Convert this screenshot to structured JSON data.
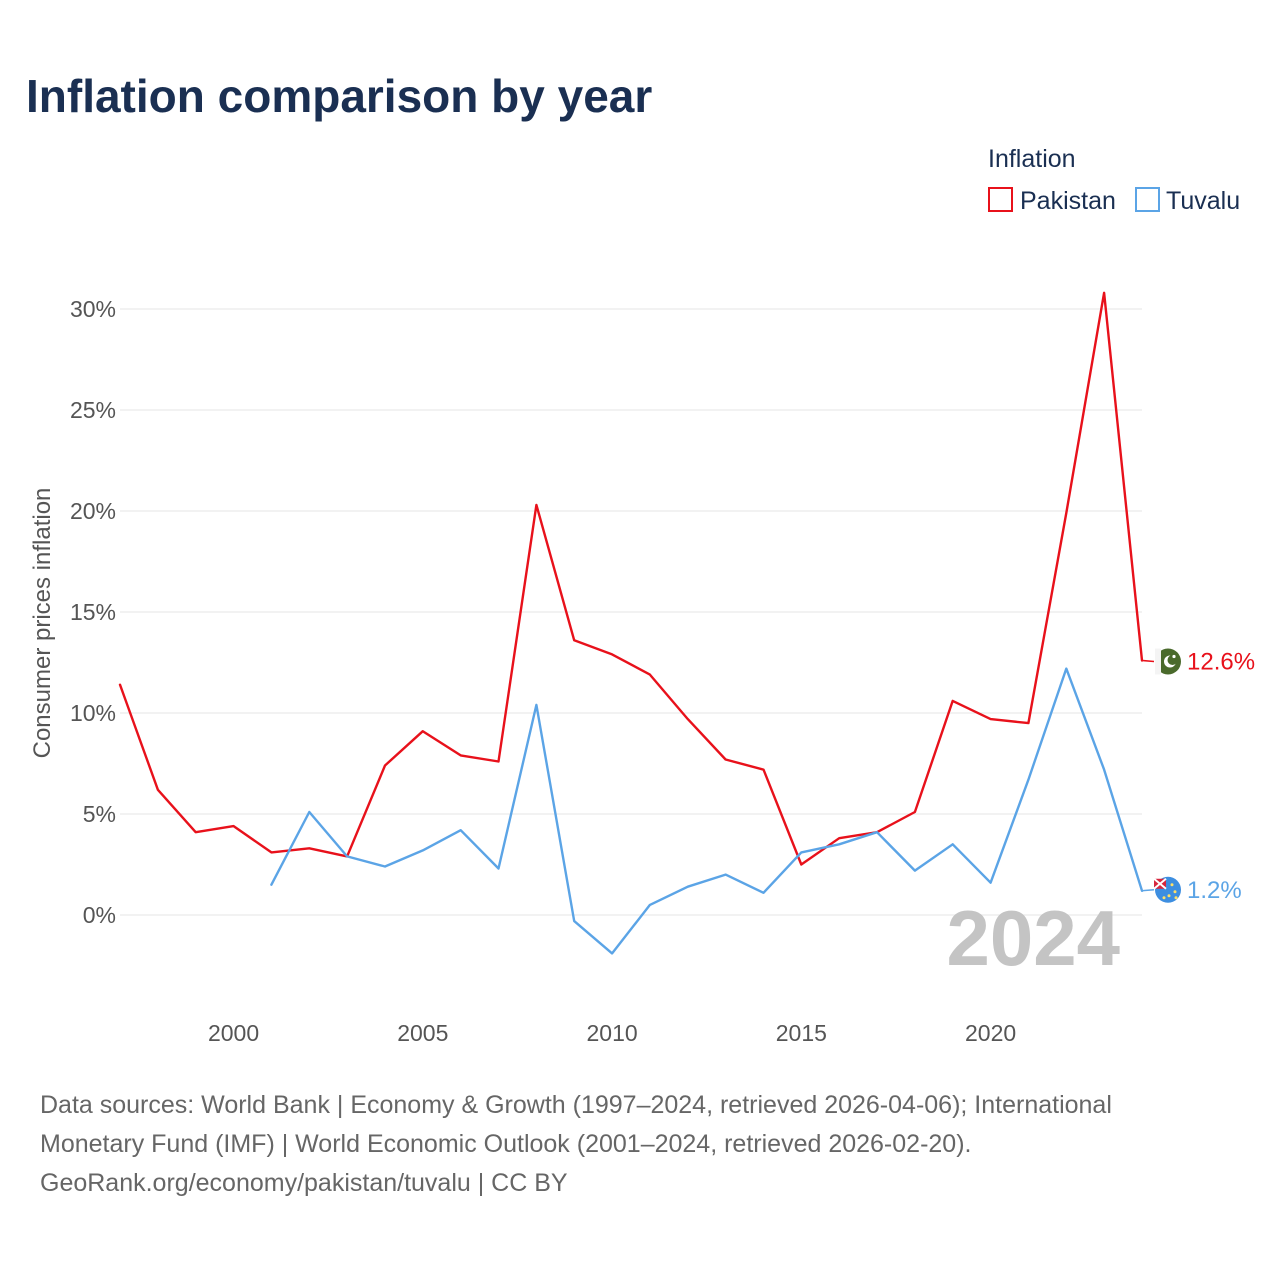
{
  "title": "Inflation comparison by year",
  "legend": {
    "title": "Inflation",
    "items": [
      {
        "label": "Pakistan",
        "color": "#e8111b"
      },
      {
        "label": "Tuvalu",
        "color": "#5ba4e6"
      }
    ]
  },
  "year_watermark": "2024",
  "source_lines": [
    "Data sources: World Bank | Economy & Growth (1997–2024, retrieved 2026-04-06); International",
    "Monetary Fund (IMF) | World Economic Outlook (2001–2024, retrieved 2026-02-20).",
    "GeoRank.org/economy/pakistan/tuvalu | CC BY"
  ],
  "chart_data": {
    "type": "line",
    "title": "Inflation comparison by year",
    "xlabel": "",
    "ylabel": "Consumer prices inflation",
    "xlim": [
      1997,
      2024
    ],
    "ylim": [
      -5,
      30
    ],
    "x_ticks": [
      2000,
      2005,
      2010,
      2015,
      2020
    ],
    "x_tick_labels": [
      "2000",
      "2005",
      "2010",
      "2015",
      "2020"
    ],
    "y_ticks": [
      0,
      5,
      10,
      15,
      20,
      25,
      30
    ],
    "y_tick_labels": [
      "0%",
      "5%",
      "10%",
      "15%",
      "20%",
      "25%",
      "30%"
    ],
    "series": [
      {
        "name": "Pakistan",
        "color": "#e8111b",
        "flag_icon": "pakistan-flag-icon",
        "end_label": "12.6%",
        "x": [
          1997,
          1998,
          1999,
          2000,
          2001,
          2002,
          2003,
          2004,
          2005,
          2006,
          2007,
          2008,
          2009,
          2010,
          2011,
          2012,
          2013,
          2014,
          2015,
          2016,
          2017,
          2018,
          2019,
          2020,
          2021,
          2022,
          2023,
          2024
        ],
        "values": [
          11.4,
          6.2,
          4.1,
          4.4,
          3.1,
          3.3,
          2.9,
          7.4,
          9.1,
          7.9,
          7.6,
          20.3,
          13.6,
          12.9,
          11.9,
          9.7,
          7.7,
          7.2,
          2.5,
          3.8,
          4.1,
          5.1,
          10.6,
          9.7,
          9.5,
          19.9,
          30.8,
          12.6
        ]
      },
      {
        "name": "Tuvalu",
        "color": "#5ba4e6",
        "flag_icon": "tuvalu-flag-icon",
        "end_label": "1.2%",
        "x": [
          2001,
          2002,
          2003,
          2004,
          2005,
          2006,
          2007,
          2008,
          2009,
          2010,
          2011,
          2012,
          2013,
          2014,
          2015,
          2016,
          2017,
          2018,
          2019,
          2020,
          2021,
          2022,
          2023,
          2024
        ],
        "values": [
          1.5,
          5.1,
          2.9,
          2.4,
          3.2,
          4.2,
          2.3,
          10.4,
          -0.3,
          -1.9,
          0.5,
          1.4,
          2.0,
          1.1,
          3.1,
          3.5,
          4.1,
          2.2,
          3.5,
          1.6,
          6.7,
          12.2,
          7.2,
          1.2
        ]
      }
    ]
  }
}
